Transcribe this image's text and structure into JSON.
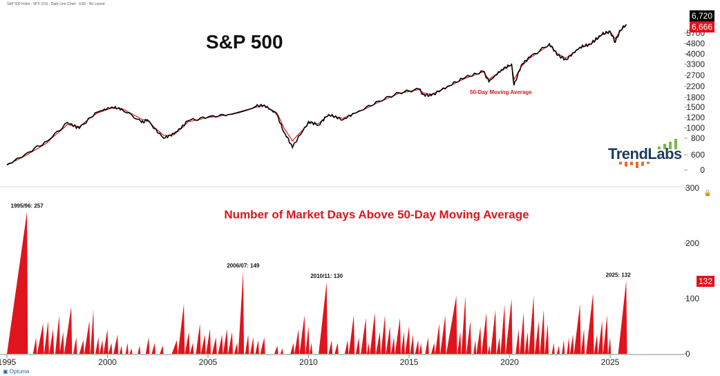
{
  "header": "S&P 500 Index - SPX (US) · Daily Line Chart · USD · No Layout",
  "branding": {
    "logo_text": "TrendLabs",
    "platform": "Optuma"
  },
  "colors": {
    "price": "#000000",
    "ma": "#e0141c",
    "fill": "#e0141c",
    "badge_black": "#000000",
    "badge_red": "#e0141c",
    "logo_green": "#7ab648",
    "logo_orange": "#f26a21"
  },
  "chart_data": [
    {
      "type": "line",
      "title": "S&P 500",
      "scale": "log",
      "y_ticks": [
        0,
        600,
        800,
        1000,
        1200,
        1500,
        1800,
        2200,
        2700,
        3300,
        4000,
        4800,
        5700
      ],
      "badges": {
        "current": "6,720",
        "ma": "6,666"
      },
      "ma_label": "50-Day Moving Average",
      "series": [
        {
          "name": "S&P 500",
          "x": [
            1995.0,
            1996.0,
            1997.0,
            1998.0,
            1998.6,
            1999.5,
            2000.2,
            2000.7,
            2001.7,
            2002.0,
            2002.8,
            2003.3,
            2004.0,
            2005.0,
            2006.0,
            2007.4,
            2007.8,
            2008.4,
            2008.8,
            2009.2,
            2010.0,
            2010.5,
            2011.0,
            2011.7,
            2012.5,
            2013.5,
            2014.5,
            2015.5,
            2015.7,
            2016.1,
            2016.9,
            2017.8,
            2018.7,
            2018.97,
            2019.6,
            2020.1,
            2020.22,
            2020.6,
            2021.0,
            2021.98,
            2022.4,
            2022.8,
            2023.5,
            2024.0,
            2024.6,
            2025.0,
            2025.25,
            2025.5,
            2025.8
          ],
          "y": [
            460,
            620,
            760,
            1100,
            990,
            1350,
            1500,
            1440,
            1100,
            1150,
            800,
            880,
            1130,
            1210,
            1280,
            1530,
            1560,
            1300,
            900,
            680,
            1120,
            1050,
            1280,
            1150,
            1380,
            1680,
            1960,
            2090,
            1900,
            1860,
            2200,
            2600,
            2900,
            2400,
            3000,
            3300,
            2250,
            3300,
            3750,
            4780,
            3900,
            3600,
            4500,
            4750,
            5600,
            5900,
            4900,
            6000,
            6720
          ]
        },
        {
          "name": "50-Day Moving Average",
          "x": [
            1995.0,
            1996.0,
            1997.0,
            1998.0,
            1998.6,
            1999.5,
            2000.2,
            2000.7,
            2001.7,
            2002.0,
            2002.8,
            2003.3,
            2004.0,
            2005.0,
            2006.0,
            2007.4,
            2007.8,
            2008.4,
            2008.8,
            2009.2,
            2010.0,
            2010.5,
            2011.0,
            2011.7,
            2012.5,
            2013.5,
            2014.5,
            2015.5,
            2015.7,
            2016.1,
            2016.9,
            2017.8,
            2018.7,
            2018.97,
            2019.6,
            2020.1,
            2020.22,
            2020.6,
            2021.0,
            2021.98,
            2022.4,
            2022.8,
            2023.5,
            2024.0,
            2024.6,
            2025.0,
            2025.25,
            2025.5,
            2025.8
          ],
          "y": [
            455,
            600,
            740,
            1060,
            1020,
            1320,
            1470,
            1460,
            1160,
            1140,
            850,
            860,
            1110,
            1200,
            1270,
            1500,
            1540,
            1340,
            980,
            760,
            1090,
            1080,
            1260,
            1180,
            1360,
            1650,
            1940,
            2080,
            1960,
            1900,
            2170,
            2560,
            2880,
            2500,
            2950,
            3260,
            2500,
            3200,
            3700,
            4700,
            4000,
            3700,
            4450,
            4700,
            5550,
            5850,
            5200,
            5900,
            6666
          ]
        }
      ],
      "x_ticks": [
        "1995",
        "2000",
        "2005",
        "2010",
        "2015",
        "2020",
        "2025"
      ]
    },
    {
      "type": "area",
      "title": "Number of Market Days Above 50-Day Moving Average",
      "ylim": [
        0,
        300
      ],
      "y_ticks": [
        0,
        100,
        200,
        300
      ],
      "badge": "132",
      "annotations": [
        {
          "label": "1995/96: 257",
          "x": 1996.0,
          "y": 257
        },
        {
          "label": "2006/07: 149",
          "x": 2006.75,
          "y": 149
        },
        {
          "label": "2010/11: 130",
          "x": 2010.9,
          "y": 130
        },
        {
          "label": "2025: 132",
          "x": 2025.4,
          "y": 132
        }
      ],
      "streaks": [
        [
          1995.0,
          1996.0,
          257
        ],
        [
          1996.3,
          1996.45,
          30
        ],
        [
          1996.5,
          1996.8,
          55
        ],
        [
          1996.85,
          1997.05,
          60
        ],
        [
          1997.1,
          1997.3,
          45
        ],
        [
          1997.4,
          1997.6,
          70
        ],
        [
          1997.62,
          1997.8,
          40
        ],
        [
          1997.85,
          1998.2,
          85
        ],
        [
          1998.3,
          1998.45,
          30
        ],
        [
          1998.6,
          1998.8,
          25
        ],
        [
          1998.85,
          1999.1,
          60
        ],
        [
          1999.15,
          1999.3,
          80
        ],
        [
          1999.4,
          1999.55,
          30
        ],
        [
          1999.6,
          1999.75,
          25
        ],
        [
          1999.8,
          2000.0,
          45
        ],
        [
          2000.05,
          2000.2,
          20
        ],
        [
          2000.3,
          2000.5,
          35
        ],
        [
          2000.6,
          2000.7,
          15
        ],
        [
          2000.9,
          2001.0,
          20
        ],
        [
          2001.1,
          2001.2,
          10
        ],
        [
          2001.5,
          2001.6,
          15
        ],
        [
          2001.9,
          2002.05,
          30
        ],
        [
          2002.2,
          2002.35,
          20
        ],
        [
          2002.6,
          2002.75,
          15
        ],
        [
          2003.2,
          2003.45,
          25
        ],
        [
          2003.5,
          2003.8,
          90
        ],
        [
          2003.85,
          2004.05,
          40
        ],
        [
          2004.1,
          2004.25,
          20
        ],
        [
          2004.4,
          2004.6,
          55
        ],
        [
          2004.65,
          2004.85,
          35
        ],
        [
          2004.9,
          2005.1,
          45
        ],
        [
          2005.2,
          2005.4,
          30
        ],
        [
          2005.5,
          2005.7,
          35
        ],
        [
          2005.75,
          2005.95,
          45
        ],
        [
          2006.0,
          2006.2,
          40
        ],
        [
          2006.3,
          2006.45,
          20
        ],
        [
          2006.5,
          2006.75,
          149
        ],
        [
          2006.85,
          2007.0,
          35
        ],
        [
          2007.1,
          2007.25,
          30
        ],
        [
          2007.35,
          2007.5,
          25
        ],
        [
          2007.6,
          2007.8,
          30
        ],
        [
          2008.3,
          2008.45,
          15
        ],
        [
          2008.6,
          2008.7,
          10
        ],
        [
          2009.1,
          2009.25,
          20
        ],
        [
          2009.3,
          2009.5,
          45
        ],
        [
          2009.55,
          2009.8,
          70
        ],
        [
          2009.85,
          2010.0,
          50
        ],
        [
          2010.05,
          2010.15,
          20
        ],
        [
          2010.5,
          2010.9,
          130
        ],
        [
          2011.0,
          2011.15,
          25
        ],
        [
          2011.3,
          2011.45,
          20
        ],
        [
          2011.8,
          2011.95,
          25
        ],
        [
          2012.0,
          2012.25,
          70
        ],
        [
          2012.35,
          2012.5,
          30
        ],
        [
          2012.6,
          2012.85,
          65
        ],
        [
          2012.9,
          2013.0,
          20
        ],
        [
          2013.05,
          2013.3,
          75
        ],
        [
          2013.35,
          2013.55,
          40
        ],
        [
          2013.6,
          2013.8,
          70
        ],
        [
          2013.85,
          2014.05,
          50
        ],
        [
          2014.1,
          2014.25,
          30
        ],
        [
          2014.3,
          2014.55,
          65
        ],
        [
          2014.6,
          2014.75,
          40
        ],
        [
          2014.8,
          2015.0,
          50
        ],
        [
          2015.05,
          2015.2,
          35
        ],
        [
          2015.3,
          2015.45,
          25
        ],
        [
          2015.5,
          2015.6,
          20
        ],
        [
          2015.8,
          2015.95,
          30
        ],
        [
          2016.1,
          2016.25,
          20
        ],
        [
          2016.3,
          2016.5,
          55
        ],
        [
          2016.55,
          2016.8,
          70
        ],
        [
          2016.85,
          2017.35,
          105
        ],
        [
          2017.4,
          2017.55,
          40
        ],
        [
          2017.6,
          2017.8,
          105
        ],
        [
          2017.85,
          2018.05,
          60
        ],
        [
          2018.2,
          2018.3,
          25
        ],
        [
          2018.35,
          2018.55,
          50
        ],
        [
          2018.6,
          2018.85,
          75
        ],
        [
          2018.9,
          2019.0,
          15
        ],
        [
          2019.05,
          2019.3,
          80
        ],
        [
          2019.35,
          2019.5,
          30
        ],
        [
          2019.55,
          2019.75,
          90
        ],
        [
          2019.8,
          2020.1,
          100
        ],
        [
          2020.3,
          2020.45,
          45
        ],
        [
          2020.5,
          2020.7,
          75
        ],
        [
          2020.75,
          2020.9,
          40
        ],
        [
          2020.95,
          2021.2,
          105
        ],
        [
          2021.25,
          2021.45,
          60
        ],
        [
          2021.5,
          2021.7,
          80
        ],
        [
          2021.75,
          2021.9,
          55
        ],
        [
          2022.1,
          2022.2,
          20
        ],
        [
          2022.35,
          2022.45,
          15
        ],
        [
          2022.6,
          2022.7,
          25
        ],
        [
          2022.85,
          2022.95,
          30
        ],
        [
          2023.0,
          2023.15,
          35
        ],
        [
          2023.2,
          2023.5,
          90
        ],
        [
          2023.55,
          2023.7,
          45
        ],
        [
          2023.8,
          2024.15,
          110
        ],
        [
          2024.2,
          2024.35,
          35
        ],
        [
          2024.4,
          2024.6,
          60
        ],
        [
          2024.65,
          2024.85,
          70
        ],
        [
          2024.9,
          2025.0,
          30
        ],
        [
          2025.4,
          2025.8,
          132
        ]
      ]
    }
  ]
}
